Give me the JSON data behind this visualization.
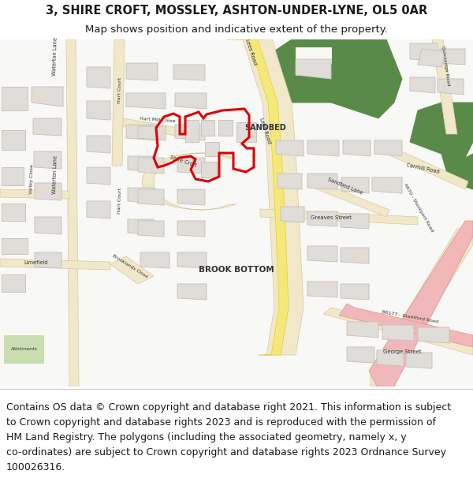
{
  "title_line1": "3, SHIRE CROFT, MOSSLEY, ASHTON-UNDER-LYNE, OL5 0AR",
  "title_line2": "Map shows position and indicative extent of the property.",
  "footer_lines": [
    "Contains OS data © Crown copyright and database right 2021. This information is subject",
    "to Crown copyright and database rights 2023 and is reproduced with the permission of",
    "HM Land Registry. The polygons (including the associated geometry, namely x, y",
    "co-ordinates) are subject to Crown copyright and database rights 2023 Ordnance Survey",
    "100026316."
  ],
  "title_fontsize": 10.5,
  "subtitle_fontsize": 9.5,
  "footer_fontsize": 9,
  "map_bg": "#f8f8f6",
  "road_yellow_fill": "#f5e87a",
  "road_yellow_edge": "#e8d020",
  "road_cream_fill": "#f0e8c8",
  "road_cream_edge": "#d8c8a0",
  "road_pink_fill": "#f0b8b8",
  "road_pink_edge": "#e09090",
  "building_fill": "#e0ddd8",
  "building_edge": "#c8c4bc",
  "green_dark": "#5a8a4a",
  "green_light": "#7aaa5a",
  "green_pale": "#c8ddb0",
  "red_poly": "#dd0000",
  "text_dark": "#1a1a1a",
  "text_road": "#333333",
  "header_bg": "#ffffff",
  "footer_bg": "#ffffff"
}
